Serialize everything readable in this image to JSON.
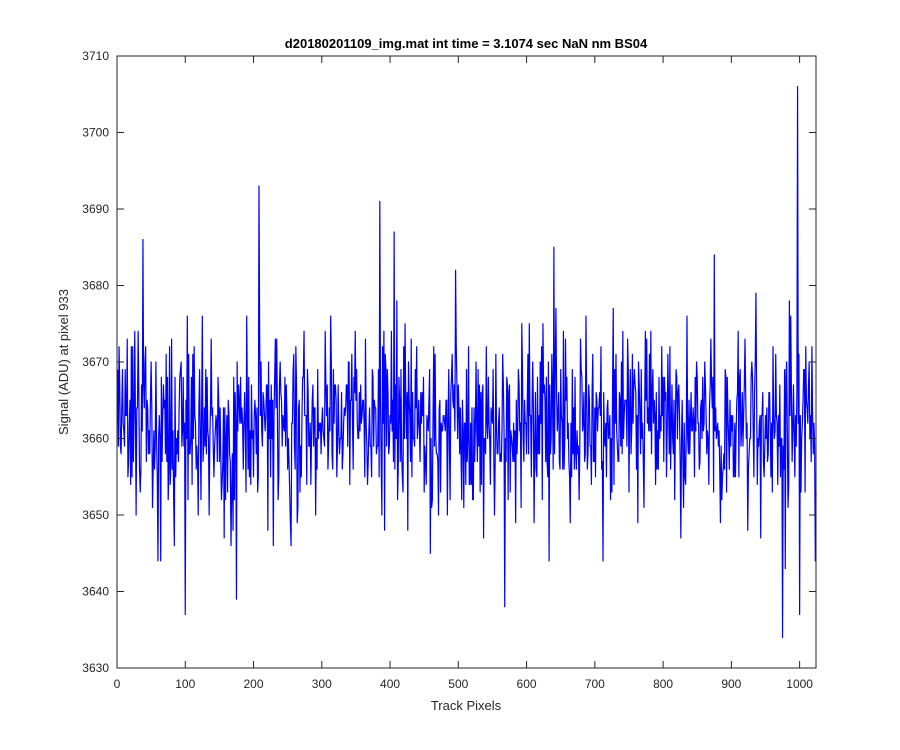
{
  "chart_data": {
    "type": "line",
    "title": "d20180201109_img.mat int time = 3.1074 sec  NaN nm BS04",
    "xlabel": "Track Pixels",
    "ylabel": "Signal (ADU) at pixel 933",
    "xlim": [
      0,
      1024
    ],
    "ylim": [
      3630,
      3710
    ],
    "x_ticks": [
      0,
      100,
      200,
      300,
      400,
      500,
      600,
      700,
      800,
      900,
      1000
    ],
    "y_ticks": [
      3630,
      3640,
      3650,
      3660,
      3670,
      3680,
      3690,
      3700,
      3710
    ],
    "grid": false,
    "series": [
      {
        "color": "#0000ff",
        "x_start": 1,
        "x_step": 1,
        "y_mean": 3662,
        "y_std": 6,
        "point_count": 1024,
        "notable_points": [
          {
            "x": 38,
            "y": 3686
          },
          {
            "x": 100,
            "y": 3637
          },
          {
            "x": 175,
            "y": 3639
          },
          {
            "x": 208,
            "y": 3693
          },
          {
            "x": 385,
            "y": 3691
          },
          {
            "x": 406,
            "y": 3687
          },
          {
            "x": 568,
            "y": 3638
          },
          {
            "x": 640,
            "y": 3685
          },
          {
            "x": 875,
            "y": 3684
          },
          {
            "x": 975,
            "y": 3634
          },
          {
            "x": 997,
            "y": 3706
          },
          {
            "x": 1000,
            "y": 3637
          }
        ]
      }
    ]
  }
}
